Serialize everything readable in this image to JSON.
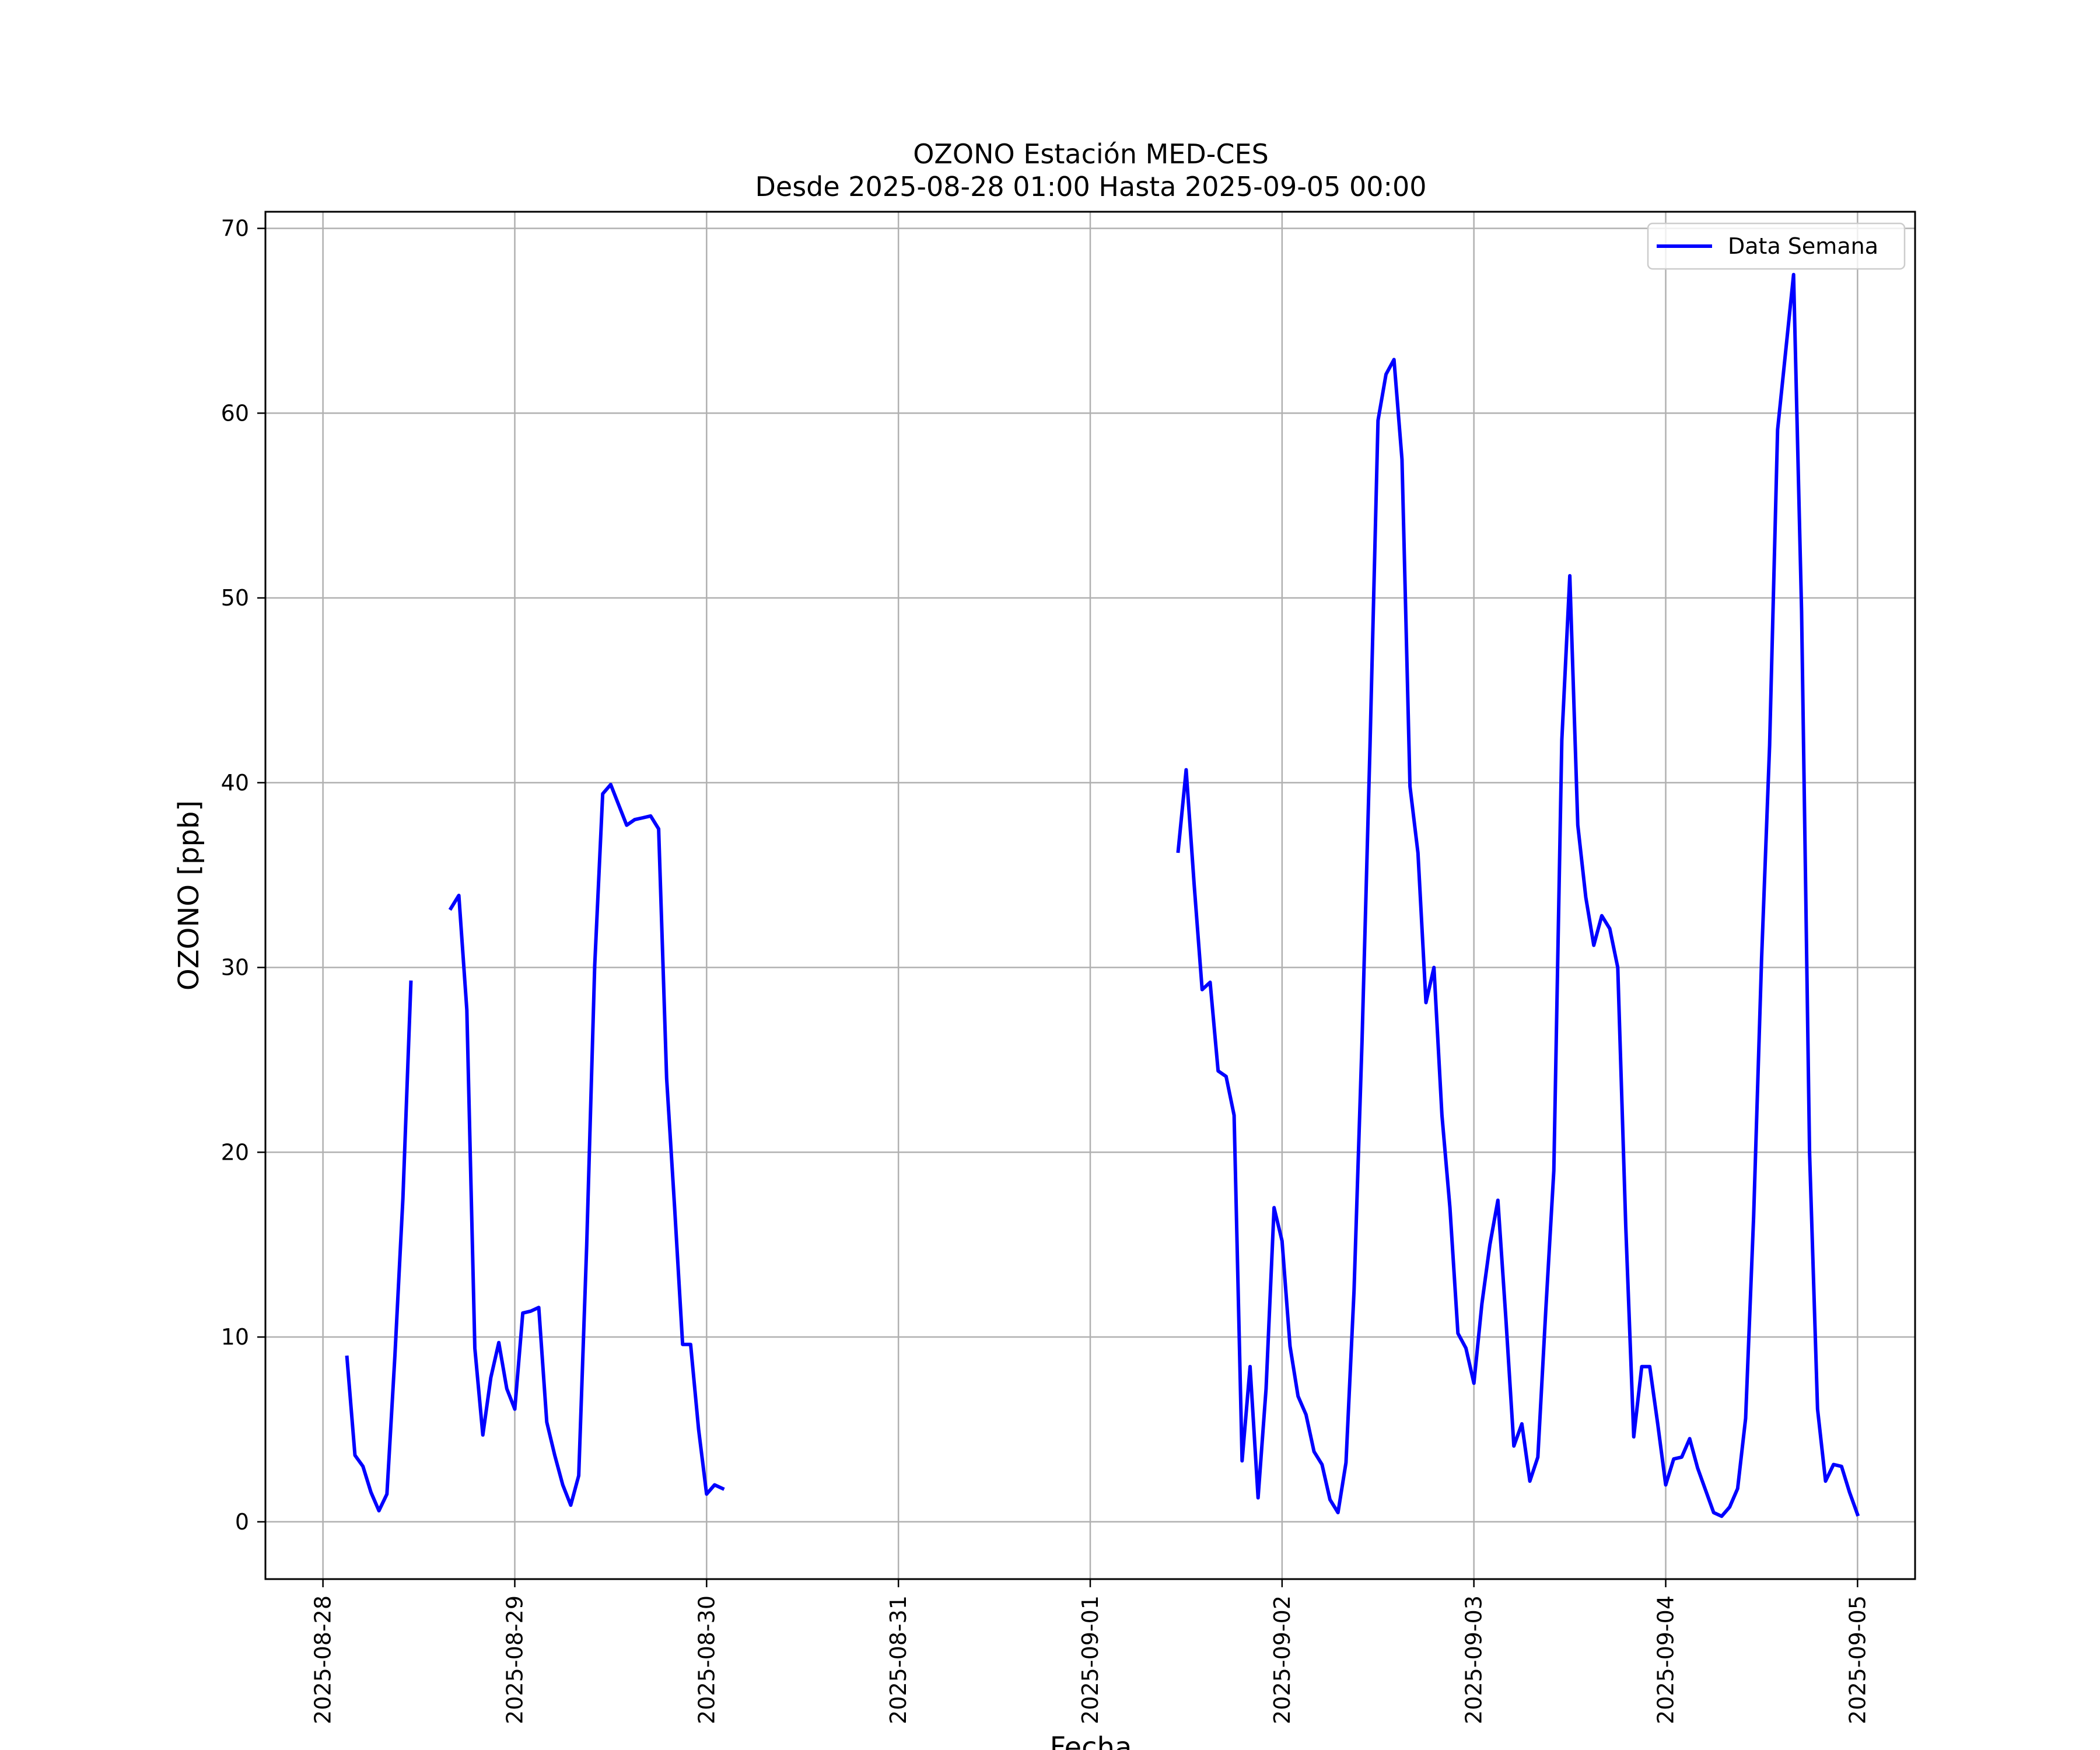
{
  "chart_data": {
    "type": "line",
    "title": "OZONO Estación MED-CES",
    "subtitle": "Desde 2025-08-28 01:00 Hasta 2025-09-05 00:00",
    "xlabel": "Fecha",
    "ylabel": "OZONO [ppb]",
    "xlim": [
      "2025-08-27 16:48",
      "2025-09-05 07:12"
    ],
    "ylim": [
      -3.1,
      70.9
    ],
    "x_ticks": [
      "2025-08-28",
      "2025-08-29",
      "2025-08-30",
      "2025-08-31",
      "2025-09-01",
      "2025-09-02",
      "2025-09-03",
      "2025-09-04",
      "2025-09-05"
    ],
    "y_ticks": [
      0,
      10,
      20,
      30,
      40,
      50,
      60,
      70
    ],
    "grid": true,
    "legend": {
      "position": "top-right",
      "entries": [
        "Data Semana"
      ]
    },
    "series": [
      {
        "name": "Data Semana",
        "color": "#0000ff",
        "segments": [
          [
            [
              "2025-08-28 03:00",
              8.9
            ],
            [
              "2025-08-28 04:00",
              3.6
            ],
            [
              "2025-08-28 05:00",
              3.0
            ],
            [
              "2025-08-28 06:00",
              1.6
            ],
            [
              "2025-08-28 07:00",
              0.6
            ],
            [
              "2025-08-28 08:00",
              1.5
            ],
            [
              "2025-08-28 09:00",
              9.0
            ],
            [
              "2025-08-28 10:00",
              17.5
            ],
            [
              "2025-08-28 11:00",
              29.2
            ]
          ],
          [
            [
              "2025-08-28 16:00",
              33.2
            ],
            [
              "2025-08-28 17:00",
              33.9
            ],
            [
              "2025-08-28 18:00",
              27.7
            ],
            [
              "2025-08-28 19:00",
              9.4
            ],
            [
              "2025-08-28 20:00",
              4.7
            ],
            [
              "2025-08-28 21:00",
              7.8
            ],
            [
              "2025-08-28 22:00",
              9.7
            ],
            [
              "2025-08-28 23:00",
              7.2
            ],
            [
              "2025-08-29 00:00",
              6.1
            ],
            [
              "2025-08-29 01:00",
              11.3
            ],
            [
              "2025-08-29 02:00",
              11.4
            ],
            [
              "2025-08-29 03:00",
              11.6
            ],
            [
              "2025-08-29 04:00",
              5.4
            ],
            [
              "2025-08-29 05:00",
              3.6
            ],
            [
              "2025-08-29 06:00",
              2.0
            ],
            [
              "2025-08-29 07:00",
              0.9
            ],
            [
              "2025-08-29 08:00",
              2.5
            ],
            [
              "2025-08-29 09:00",
              15.0
            ],
            [
              "2025-08-29 10:00",
              30.1
            ],
            [
              "2025-08-29 11:00",
              39.4
            ],
            [
              "2025-08-29 12:00",
              39.9
            ],
            [
              "2025-08-29 13:00",
              38.8
            ],
            [
              "2025-08-29 14:00",
              37.7
            ],
            [
              "2025-08-29 15:00",
              38.0
            ],
            [
              "2025-08-29 16:00",
              38.1
            ],
            [
              "2025-08-29 17:00",
              38.2
            ],
            [
              "2025-08-29 18:00",
              37.5
            ],
            [
              "2025-08-29 19:00",
              24.0
            ],
            [
              "2025-08-29 20:00",
              17.0
            ],
            [
              "2025-08-29 21:00",
              9.6
            ],
            [
              "2025-08-29 22:00",
              9.6
            ],
            [
              "2025-08-29 23:00",
              5.0
            ],
            [
              "2025-08-30 00:00",
              1.5
            ],
            [
              "2025-08-30 01:00",
              2.0
            ],
            [
              "2025-08-30 02:00",
              1.8
            ]
          ],
          [
            [
              "2025-09-01 11:00",
              36.3
            ],
            [
              "2025-09-01 12:00",
              40.7
            ],
            [
              "2025-09-01 13:00",
              34.5
            ],
            [
              "2025-09-01 14:00",
              28.8
            ],
            [
              "2025-09-01 15:00",
              29.2
            ],
            [
              "2025-09-01 16:00",
              24.4
            ],
            [
              "2025-09-01 17:00",
              24.1
            ],
            [
              "2025-09-01 18:00",
              22.0
            ],
            [
              "2025-09-01 19:00",
              3.3
            ],
            [
              "2025-09-01 20:00",
              8.4
            ],
            [
              "2025-09-01 21:00",
              1.3
            ],
            [
              "2025-09-01 22:00",
              7.2
            ],
            [
              "2025-09-01 23:00",
              17.0
            ],
            [
              "2025-09-02 00:00",
              15.2
            ],
            [
              "2025-09-02 01:00",
              9.5
            ],
            [
              "2025-09-02 02:00",
              6.8
            ],
            [
              "2025-09-02 03:00",
              5.8
            ],
            [
              "2025-09-02 04:00",
              3.8
            ],
            [
              "2025-09-02 05:00",
              3.1
            ],
            [
              "2025-09-02 06:00",
              1.2
            ],
            [
              "2025-09-02 07:00",
              0.5
            ],
            [
              "2025-09-02 08:00",
              3.2
            ],
            [
              "2025-09-02 09:00",
              12.5
            ],
            [
              "2025-09-02 10:00",
              26.0
            ],
            [
              "2025-09-02 11:00",
              42.0
            ],
            [
              "2025-09-02 12:00",
              59.6
            ],
            [
              "2025-09-02 13:00",
              62.1
            ],
            [
              "2025-09-02 14:00",
              62.9
            ],
            [
              "2025-09-02 15:00",
              57.5
            ],
            [
              "2025-09-02 16:00",
              39.8
            ],
            [
              "2025-09-02 17:00",
              36.2
            ],
            [
              "2025-09-02 18:00",
              28.1
            ],
            [
              "2025-09-02 19:00",
              30.0
            ],
            [
              "2025-09-02 20:00",
              22.0
            ],
            [
              "2025-09-02 21:00",
              17.0
            ],
            [
              "2025-09-02 22:00",
              10.2
            ],
            [
              "2025-09-02 23:00",
              9.4
            ],
            [
              "2025-09-03 00:00",
              7.5
            ],
            [
              "2025-09-03 01:00",
              11.8
            ],
            [
              "2025-09-03 02:00",
              15.0
            ],
            [
              "2025-09-03 03:00",
              17.4
            ],
            [
              "2025-09-03 04:00",
              11.0
            ],
            [
              "2025-09-03 05:00",
              4.1
            ],
            [
              "2025-09-03 06:00",
              5.3
            ],
            [
              "2025-09-03 07:00",
              2.2
            ],
            [
              "2025-09-03 08:00",
              3.5
            ],
            [
              "2025-09-03 09:00",
              11.5
            ],
            [
              "2025-09-03 10:00",
              19.0
            ],
            [
              "2025-09-03 11:00",
              42.3
            ],
            [
              "2025-09-03 12:00",
              51.2
            ],
            [
              "2025-09-03 13:00",
              37.7
            ],
            [
              "2025-09-03 14:00",
              33.8
            ],
            [
              "2025-09-03 15:00",
              31.2
            ],
            [
              "2025-09-03 16:00",
              32.8
            ],
            [
              "2025-09-03 17:00",
              32.1
            ],
            [
              "2025-09-03 18:00",
              30.0
            ],
            [
              "2025-09-03 19:00",
              16.0
            ],
            [
              "2025-09-03 20:00",
              4.6
            ],
            [
              "2025-09-03 21:00",
              8.4
            ],
            [
              "2025-09-03 22:00",
              8.4
            ],
            [
              "2025-09-03 23:00",
              5.3
            ],
            [
              "2025-09-04 00:00",
              2.0
            ],
            [
              "2025-09-04 01:00",
              3.4
            ],
            [
              "2025-09-04 02:00",
              3.5
            ],
            [
              "2025-09-04 03:00",
              4.5
            ],
            [
              "2025-09-04 04:00",
              2.9
            ],
            [
              "2025-09-04 05:00",
              1.7
            ],
            [
              "2025-09-04 06:00",
              0.5
            ],
            [
              "2025-09-04 07:00",
              0.3
            ],
            [
              "2025-09-04 08:00",
              0.8
            ],
            [
              "2025-09-04 09:00",
              1.8
            ],
            [
              "2025-09-04 10:00",
              5.6
            ],
            [
              "2025-09-04 11:00",
              16.5
            ],
            [
              "2025-09-04 12:00",
              30.5
            ],
            [
              "2025-09-04 13:00",
              42.0
            ],
            [
              "2025-09-04 14:00",
              59.1
            ],
            [
              "2025-09-04 15:00",
              63.3
            ],
            [
              "2025-09-04 16:00",
              67.5
            ],
            [
              "2025-09-04 17:00",
              49.3
            ],
            [
              "2025-09-04 18:00",
              20.0
            ],
            [
              "2025-09-04 19:00",
              6.1
            ],
            [
              "2025-09-04 20:00",
              2.2
            ],
            [
              "2025-09-04 21:00",
              3.1
            ],
            [
              "2025-09-04 22:00",
              3.0
            ],
            [
              "2025-09-04 23:00",
              1.6
            ],
            [
              "2025-09-05 00:00",
              0.4
            ]
          ]
        ]
      }
    ]
  }
}
